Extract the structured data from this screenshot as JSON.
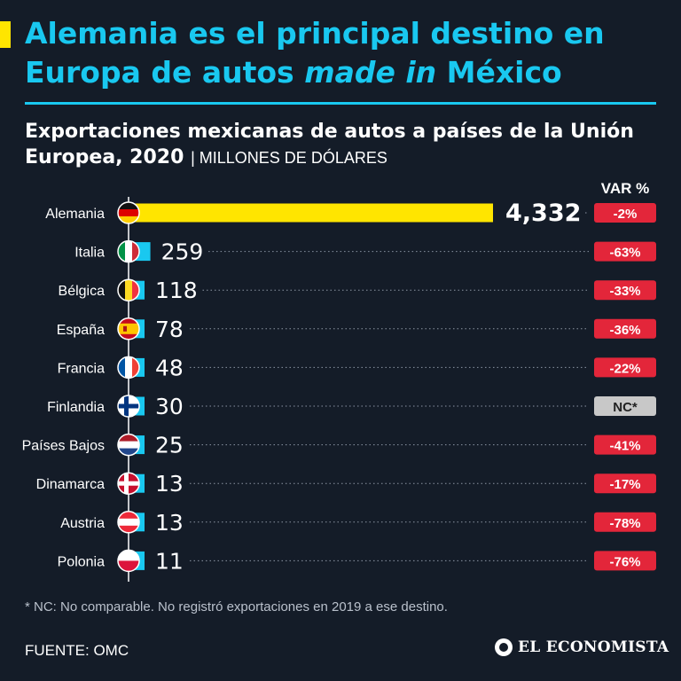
{
  "header": {
    "title_part1": "Alemania es el principal destino en Europa de autos ",
    "title_italic": "made in",
    "title_part2": " México"
  },
  "subtitle": {
    "main": "Exportaciones mexicanas de autos a países de la Unión Europea, 2020",
    "unit": "MILLONES DE DÓLARES"
  },
  "var_header": "VAR %",
  "colors": {
    "background": "#141c28",
    "accent_yellow": "#ffe500",
    "accent_blue": "#19c8f0",
    "var_negative": "#e3263a",
    "var_nc": "#c8c8c8"
  },
  "chart_data": {
    "type": "bar",
    "orientation": "horizontal",
    "categories": [
      "Alemania",
      "Italia",
      "Bélgica",
      "España",
      "Francia",
      "Finlandia",
      "Países Bajos",
      "Dinamarca",
      "Austria",
      "Polonia"
    ],
    "values": [
      4332,
      259,
      118,
      78,
      48,
      30,
      25,
      13,
      13,
      11
    ],
    "value_labels": [
      "4,332",
      "259",
      "118",
      "78",
      "48",
      "30",
      "25",
      "13",
      "13",
      "11"
    ],
    "var_pct": [
      "-2%",
      "-63%",
      "-33%",
      "-36%",
      "-22%",
      "NC*",
      "-41%",
      "-17%",
      "-78%",
      "-76%"
    ],
    "flag_icons": [
      "flag-germany-icon",
      "flag-italy-icon",
      "flag-belgium-icon",
      "flag-spain-icon",
      "flag-france-icon",
      "flag-finland-icon",
      "flag-netherlands-icon",
      "flag-denmark-icon",
      "flag-austria-icon",
      "flag-poland-icon"
    ],
    "highlight_color": "#ffe500",
    "bar_color": "#19c8f0"
  },
  "footnote": "* NC: No comparable. No registró exportaciones en 2019 a ese destino.",
  "source": "FUENTE: OMC",
  "brand": "EL ECONOMISTA"
}
